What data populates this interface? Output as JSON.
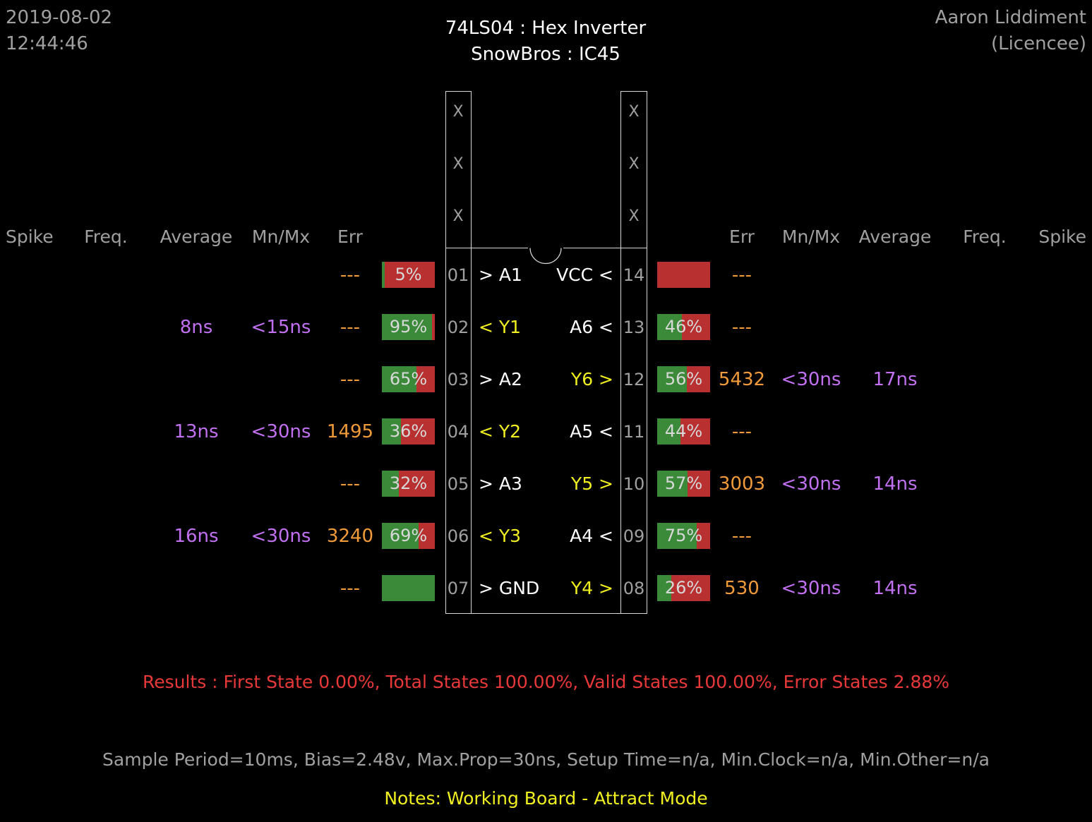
{
  "header": {
    "date": "2019-08-02",
    "time": "12:44:46",
    "title": "74LS04  :  Hex Inverter",
    "subtitle": "SnowBros : IC45",
    "licensee_name": "Aaron Liddiment",
    "licensee_label": "(Licencee)"
  },
  "columns": {
    "left": [
      "Spike",
      "Freq.",
      "Average",
      "Mn/Mx",
      "Err"
    ],
    "right": [
      "Err",
      "Mn/Mx",
      "Average",
      "Freq.",
      "Spike"
    ]
  },
  "chip": {
    "left_x": [
      "X",
      "X",
      "X"
    ],
    "right_x": [
      "X",
      "X",
      "X"
    ]
  },
  "left_pins": [
    {
      "num": "01",
      "label": "> A1",
      "io": "in",
      "err": "---",
      "bar_text": "5%",
      "bar_green": 0.05,
      "mnmx": "",
      "avg": ""
    },
    {
      "num": "02",
      "label": "< Y1",
      "io": "out",
      "err": "---",
      "bar_text": "95%",
      "bar_green": 0.95,
      "mnmx": "<15ns",
      "avg": "8ns"
    },
    {
      "num": "03",
      "label": "> A2",
      "io": "in",
      "err": "---",
      "bar_text": "65%",
      "bar_green": 0.65,
      "mnmx": "",
      "avg": ""
    },
    {
      "num": "04",
      "label": "< Y2",
      "io": "out",
      "err": "1495",
      "bar_text": "36%",
      "bar_green": 0.36,
      "mnmx": "<30ns",
      "avg": "13ns"
    },
    {
      "num": "05",
      "label": "> A3",
      "io": "in",
      "err": "---",
      "bar_text": "32%",
      "bar_green": 0.32,
      "mnmx": "",
      "avg": ""
    },
    {
      "num": "06",
      "label": "< Y3",
      "io": "out",
      "err": "3240",
      "bar_text": "69%",
      "bar_green": 0.69,
      "mnmx": "<30ns",
      "avg": "16ns"
    },
    {
      "num": "07",
      "label": "> GND",
      "io": "in",
      "err": "---",
      "bar_text": "",
      "bar_green": 1.0,
      "mnmx": "",
      "avg": ""
    }
  ],
  "right_pins": [
    {
      "num": "14",
      "label": "VCC <",
      "io": "in",
      "err": "---",
      "bar_text": "",
      "bar_green": 0.0,
      "mnmx": "",
      "avg": ""
    },
    {
      "num": "13",
      "label": "A6 <",
      "io": "in",
      "err": "---",
      "bar_text": "46%",
      "bar_green": 0.46,
      "mnmx": "",
      "avg": ""
    },
    {
      "num": "12",
      "label": "Y6 >",
      "io": "out",
      "err": "5432",
      "bar_text": "56%",
      "bar_green": 0.56,
      "mnmx": "<30ns",
      "avg": "17ns"
    },
    {
      "num": "11",
      "label": "A5 <",
      "io": "in",
      "err": "---",
      "bar_text": "44%",
      "bar_green": 0.44,
      "mnmx": "",
      "avg": ""
    },
    {
      "num": "10",
      "label": "Y5 >",
      "io": "out",
      "err": "3003",
      "bar_text": "57%",
      "bar_green": 0.57,
      "mnmx": "<30ns",
      "avg": "14ns"
    },
    {
      "num": "09",
      "label": "A4 <",
      "io": "in",
      "err": "---",
      "bar_text": "75%",
      "bar_green": 0.75,
      "mnmx": "",
      "avg": ""
    },
    {
      "num": "08",
      "label": "Y4 >",
      "io": "out",
      "err": "530",
      "bar_text": "26%",
      "bar_green": 0.26,
      "mnmx": "<30ns",
      "avg": "14ns"
    }
  ],
  "results": "Results  :  First State 0.00%,  Total States 100.00%,  Valid States 100.00%,  Error States 2.88%",
  "params": "Sample Period=10ms,  Bias=2.48v,  Max.Prop=30ns,  Setup Time=n/a,  Min.Clock=n/a,  Min.Other=n/a",
  "notes": "Notes:  Working Board - Attract Mode",
  "colors": {
    "bar_green": "#3a8a3a",
    "bar_red": "#b83030",
    "err_orange": "#f09a3a",
    "timing_purple": "#c070f0",
    "output_yellow": "#f0f020",
    "results_red": "#e83838"
  }
}
